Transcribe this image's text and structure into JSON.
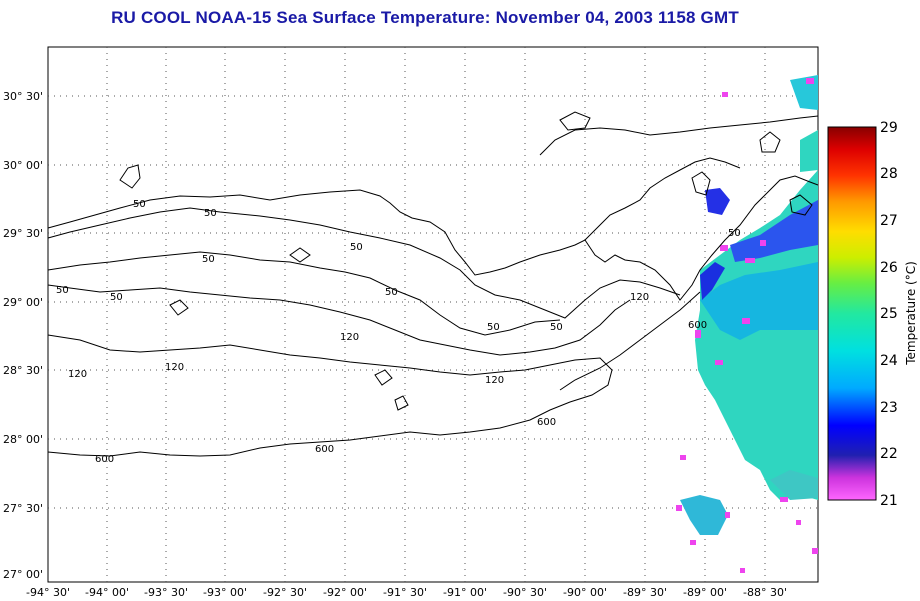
{
  "title": "RU COOL  NOAA-15  Sea Surface Temperature:  November 04, 2003 1158 GMT",
  "map": {
    "lat_labels": [
      "30° 30'",
      "30° 00'",
      "29° 30'",
      "29° 00'",
      "28° 30'",
      "28° 00'",
      "27° 30'",
      "27° 00'"
    ],
    "lon_labels": [
      "-94° 30'",
      "-94° 00'",
      "-93° 30'",
      "-93° 00'",
      "-92° 30'",
      "-92° 00'",
      "-91° 30'",
      "-91° 00'",
      "-90° 30'",
      "-90° 00'",
      "-89° 30'",
      "-89° 00'",
      "-88° 30'"
    ],
    "isobath_labels": [
      "50",
      "50",
      "50",
      "50",
      "50",
      "50",
      "50",
      "50",
      "50",
      "50",
      "120",
      "120",
      "120",
      "120",
      "120",
      "600",
      "600",
      "600",
      "600"
    ],
    "grid": true
  },
  "colorbar": {
    "label": "Temperature (°C)",
    "ticks": [
      "29",
      "28",
      "27",
      "26",
      "25",
      "24",
      "23",
      "22",
      "21"
    ],
    "min": 21,
    "max": 29
  }
}
